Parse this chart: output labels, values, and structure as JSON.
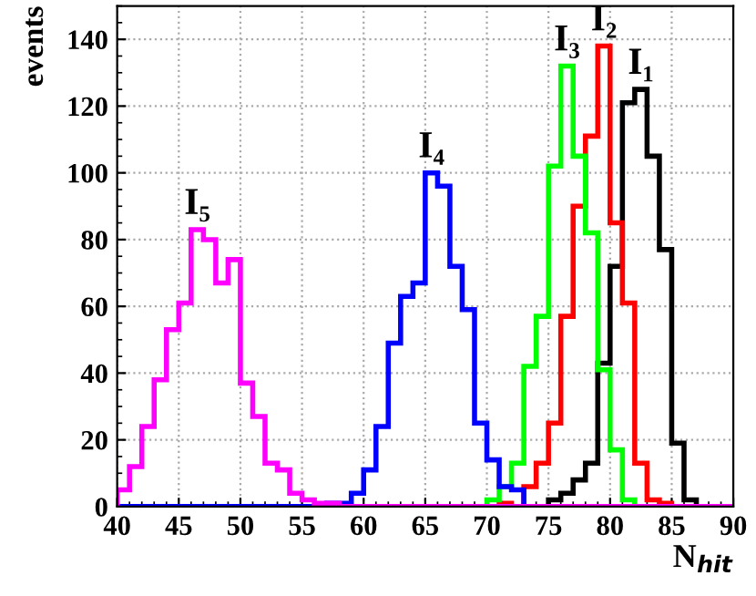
{
  "chart_data": {
    "type": "histogram",
    "ylabel": "events",
    "xlabel": "N$_{hit}$",
    "bins": [
      40,
      41,
      42,
      43,
      44,
      45,
      46,
      47,
      48,
      49,
      50,
      51,
      52,
      53,
      54,
      55,
      56,
      57,
      58,
      59,
      60,
      61,
      62,
      63,
      64,
      65,
      66,
      67,
      68,
      69,
      70,
      71,
      72,
      73,
      74,
      75,
      76,
      77,
      78,
      79,
      80,
      81,
      82,
      83,
      84,
      85,
      86,
      87,
      88,
      89,
      90
    ],
    "series": [
      {
        "color": "#000000",
        "values": [
          0,
          0,
          0,
          0,
          0,
          0,
          0,
          0,
          0,
          0,
          0,
          0,
          0,
          0,
          0,
          0,
          0,
          0,
          0,
          0,
          0,
          0,
          0,
          0,
          0,
          0,
          0,
          0,
          0,
          0,
          0,
          0,
          0,
          0,
          0,
          2,
          4,
          8,
          13,
          43,
          72,
          121,
          125,
          105,
          77,
          19,
          2,
          0,
          0,
          0
        ]
      },
      {
        "color": "#ff0000",
        "values": [
          0,
          0,
          0,
          0,
          0,
          0,
          0,
          0,
          0,
          0,
          0,
          0,
          0,
          0,
          0,
          0,
          0,
          0,
          0,
          0,
          0,
          0,
          0,
          0,
          0,
          0,
          0,
          0,
          0,
          0,
          0,
          1,
          0,
          6,
          13,
          25,
          57,
          90,
          111,
          138,
          85,
          61,
          13,
          2,
          1,
          0,
          0,
          0,
          0,
          0
        ]
      },
      {
        "color": "#00ff00",
        "values": [
          0,
          0,
          0,
          0,
          0,
          0,
          0,
          0,
          0,
          0,
          0,
          0,
          0,
          0,
          0,
          0,
          0,
          0,
          0,
          0,
          0,
          0,
          0,
          0,
          0,
          0,
          0,
          0,
          0,
          0,
          2,
          6,
          13,
          42,
          57,
          102,
          132,
          105,
          82,
          41,
          17,
          2,
          0,
          0,
          0,
          0,
          0,
          0,
          0,
          0
        ]
      },
      {
        "color": "#0000ff",
        "values": [
          0,
          0,
          0,
          0,
          0,
          0,
          0,
          0,
          0,
          0,
          0,
          0,
          0,
          0,
          0,
          0,
          0,
          1,
          1,
          4,
          11,
          24,
          49,
          63,
          67,
          100,
          96,
          72,
          59,
          25,
          14,
          6,
          5,
          0,
          0,
          0,
          0,
          0,
          0,
          0,
          0,
          0,
          0,
          0,
          0,
          0,
          0,
          0,
          0,
          0
        ]
      },
      {
        "color": "#ff00ff",
        "values": [
          5,
          12,
          24,
          38,
          53,
          61,
          83,
          80,
          67,
          74,
          37,
          27,
          13,
          11,
          4,
          2,
          1,
          1,
          0,
          0,
          0,
          0,
          0,
          0,
          0,
          0,
          0,
          0,
          0,
          0,
          0,
          0,
          0,
          0,
          0,
          0,
          0,
          0,
          0,
          0,
          0,
          0,
          0,
          0,
          0,
          0,
          0,
          0,
          0,
          0
        ]
      }
    ],
    "annotations": [
      {
        "text": "I₁",
        "x": 82.5,
        "y": 125
      },
      {
        "text": "I₂",
        "x": 79.5,
        "y": 138
      },
      {
        "text": "I₃",
        "x": 76.5,
        "y": 132
      },
      {
        "text": "I₄",
        "x": 65.5,
        "y": 100
      },
      {
        "text": "I₅",
        "x": 46.5,
        "y": 83
      }
    ],
    "xlim": [
      40,
      90
    ],
    "xticks": [
      40,
      45,
      50,
      55,
      60,
      65,
      70,
      75,
      80,
      85,
      90
    ],
    "ylim": [
      0,
      150
    ],
    "yticks": [
      0,
      20,
      40,
      60,
      80,
      100,
      120,
      140
    ],
    "grid": true
  }
}
